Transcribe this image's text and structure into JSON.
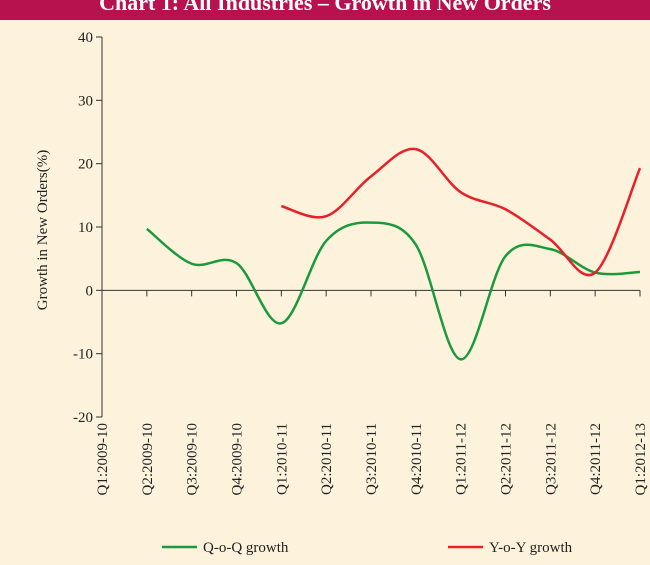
{
  "chart_data": {
    "type": "line",
    "title": "Chart 1: All Industries – Growth in New Orders",
    "y_label": "Growth in New Orders(%)",
    "categories": [
      "Q1:2009-10",
      "Q2:2009-10",
      "Q3:2009-10",
      "Q4:2009-10",
      "Q1:2010-11",
      "Q2:2010-11",
      "Q3:2010-11",
      "Q4:2010-11",
      "Q1:2011-12",
      "Q2:2011-12",
      "Q3:2011-12",
      "Q4:2011-12",
      "Q1:2012-13"
    ],
    "series": [
      {
        "name": "Q-o-Q growth",
        "color": "#1a9a3c",
        "values": [
          null,
          9.7,
          4.2,
          4.3,
          -5.2,
          7.8,
          10.7,
          7.2,
          -10.9,
          5.4,
          6.5,
          2.8,
          2.9
        ]
      },
      {
        "name": "Y-o-Y growth",
        "color": "#e8202a",
        "values": [
          null,
          null,
          null,
          null,
          13.3,
          11.7,
          18.0,
          22.3,
          15.5,
          12.8,
          8.0,
          2.8,
          19.3
        ]
      }
    ],
    "ylim": [
      -20,
      40
    ],
    "yticks": [
      -20,
      -10,
      0,
      10,
      20,
      30,
      40
    ]
  }
}
